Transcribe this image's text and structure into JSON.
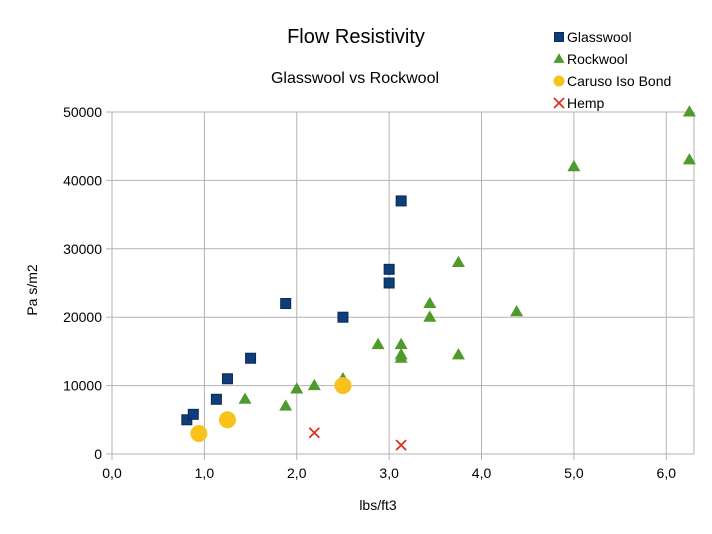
{
  "chart_data": {
    "type": "scatter",
    "title": "Flow Resistivity",
    "subtitle": "Glasswool vs Rockwool",
    "xlabel": "lbs/ft3",
    "ylabel": "Pa s/m2",
    "xlim": [
      0,
      6.3
    ],
    "ylim": [
      0,
      50000
    ],
    "xticks": [
      0,
      1,
      2,
      3,
      4,
      5,
      6
    ],
    "xtick_labels": [
      "0,0",
      "1,0",
      "2,0",
      "3,0",
      "4,0",
      "5,0",
      "6,0"
    ],
    "yticks": [
      0,
      10000,
      20000,
      30000,
      40000,
      50000
    ],
    "ytick_labels": [
      "0",
      "10000",
      "20000",
      "30000",
      "40000",
      "50000"
    ],
    "grid": true,
    "legend_position": "top-right",
    "series": [
      {
        "name": "Glasswool",
        "marker": "square",
        "color": "#0f3d7a",
        "points": [
          [
            0.81,
            5000
          ],
          [
            0.88,
            5800
          ],
          [
            1.13,
            8000
          ],
          [
            1.25,
            11000
          ],
          [
            1.5,
            14000
          ],
          [
            1.88,
            22000
          ],
          [
            2.5,
            20000
          ],
          [
            3.0,
            27000
          ],
          [
            3.0,
            25000
          ],
          [
            3.13,
            37000
          ]
        ]
      },
      {
        "name": "Rockwool",
        "marker": "triangle",
        "color": "#4e9a2a",
        "points": [
          [
            1.44,
            8000
          ],
          [
            1.88,
            7000
          ],
          [
            2.0,
            9500
          ],
          [
            2.19,
            10000
          ],
          [
            2.5,
            11000
          ],
          [
            2.88,
            16000
          ],
          [
            3.13,
            16000
          ],
          [
            3.13,
            14000
          ],
          [
            3.13,
            14500
          ],
          [
            3.44,
            20000
          ],
          [
            3.44,
            22000
          ],
          [
            3.75,
            28000
          ],
          [
            3.75,
            14500
          ],
          [
            4.38,
            20800
          ],
          [
            5.0,
            42000
          ],
          [
            6.25,
            50000
          ],
          [
            6.25,
            43000
          ]
        ]
      },
      {
        "name": "Caruso Iso Bond",
        "marker": "circle",
        "color": "#f6c21b",
        "points": [
          [
            0.94,
            3000
          ],
          [
            1.25,
            5000
          ],
          [
            2.5,
            10000
          ]
        ]
      },
      {
        "name": "Hemp",
        "marker": "x",
        "color": "#e0301e",
        "points": [
          [
            2.19,
            3100
          ],
          [
            3.13,
            1300
          ]
        ]
      }
    ]
  }
}
